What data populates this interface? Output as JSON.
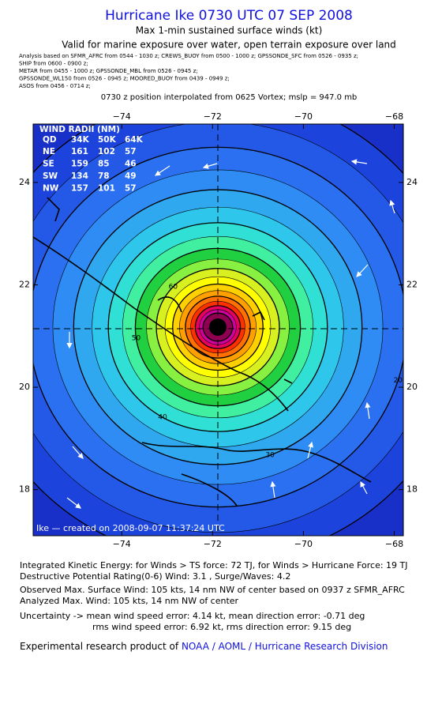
{
  "header": {
    "title": "Hurricane Ike 0730 UTC 07 SEP 2008",
    "subtitle": "Max 1-min sustained surface winds (kt)",
    "valid": "Valid for marine exposure over water, open terrain exposure over land",
    "analysis": [
      "Analysis based on  SFMR_AFRC from 0544 - 1030 z;  CREWS_BUOY from 0500 - 1000 z;  GPSSONDE_SFC from 0526 - 0935 z;",
      "SHIP from 0600 - 0900 z;",
      "METAR from 0455 - 1000 z;  GPSSONDE_MBL from 0526 - 0945 z;",
      "GPSSONDE_WL150 from 0526 - 0945 z;  MOORED_BUOY from 0439 - 0949 z;",
      "ASOS from 0456 - 0714 z;"
    ],
    "position": "0730 z position interpolated from 0625 Vortex; mslp = 947.0 mb"
  },
  "map": {
    "xlim": [
      -75.95,
      -67.8
    ],
    "ylim": [
      17.1,
      25.14
    ],
    "xticks": [
      {
        "value": -74,
        "label": "−74"
      },
      {
        "value": -72,
        "label": "−72"
      },
      {
        "value": -70,
        "label": "−70"
      },
      {
        "value": -68,
        "label": "−68"
      }
    ],
    "yticks": [
      18,
      20,
      22,
      24
    ],
    "levels": [
      {
        "value": 10,
        "color": "#1c44dc"
      },
      {
        "value": 15,
        "color": "#2458e6"
      },
      {
        "value": 20,
        "color": "#2a70f0"
      },
      {
        "value": 25,
        "color": "#2e8cf4"
      },
      {
        "value": 30,
        "color": "#30a8f0"
      },
      {
        "value": 35,
        "color": "#2ec6ea"
      },
      {
        "value": 40,
        "color": "#30e0d4"
      },
      {
        "value": 45,
        "color": "#40f0a0"
      },
      {
        "value": 50,
        "color": "#20d040"
      },
      {
        "value": 55,
        "color": "#88f040"
      },
      {
        "value": 60,
        "color": "#d8f020"
      },
      {
        "value": 65,
        "color": "#ffff00"
      },
      {
        "value": 70,
        "color": "#ffd000"
      },
      {
        "value": 75,
        "color": "#ffa000"
      },
      {
        "value": 80,
        "color": "#ff7000"
      },
      {
        "value": 85,
        "color": "#ff3000"
      },
      {
        "value": 90,
        "color": "#e80060"
      },
      {
        "value": 95,
        "color": "#d000a0"
      },
      {
        "value": 100,
        "color": "#900050"
      }
    ],
    "contour_labels": [
      10,
      20,
      30,
      40,
      50,
      60
    ],
    "radii": {
      "title": "WIND RADII (NM)",
      "header": [
        "QD",
        "34K",
        "50K",
        "64K"
      ],
      "rows": [
        [
          "NE",
          "161",
          "102",
          "57"
        ],
        [
          "SE",
          "159",
          "85",
          "46"
        ],
        [
          "SW",
          "134",
          "78",
          "49"
        ],
        [
          "NW",
          "157",
          "101",
          "57"
        ]
      ]
    },
    "credit": "Ike — created on 2008-09-07 11:37:24 UTC"
  },
  "footer": {
    "lines": [
      "Integrated Kinetic Energy:  for Winds > TS force: 72 TJ,  for Winds > Hurricane Force: 19 TJ",
      "Destructive Potential Rating(0-6)  Wind: 3.1 , Surge/Waves: 4.2",
      "Observed Max. Surface Wind: 105 kts, 14 nm NW of center based on 0937 z SFMR_AFRC",
      "Analyzed Max. Wind: 105 kts, 14 nm NW of center",
      "Uncertainty -> mean wind speed error: 4.14 kt,   mean direction error:  -0.71 deg",
      "rms wind speed error: 6.92 kt,   rms direction error: 9.15 deg"
    ],
    "product": "Experimental research product of",
    "link": "NOAA / AOML / Hurricane Research Division"
  }
}
